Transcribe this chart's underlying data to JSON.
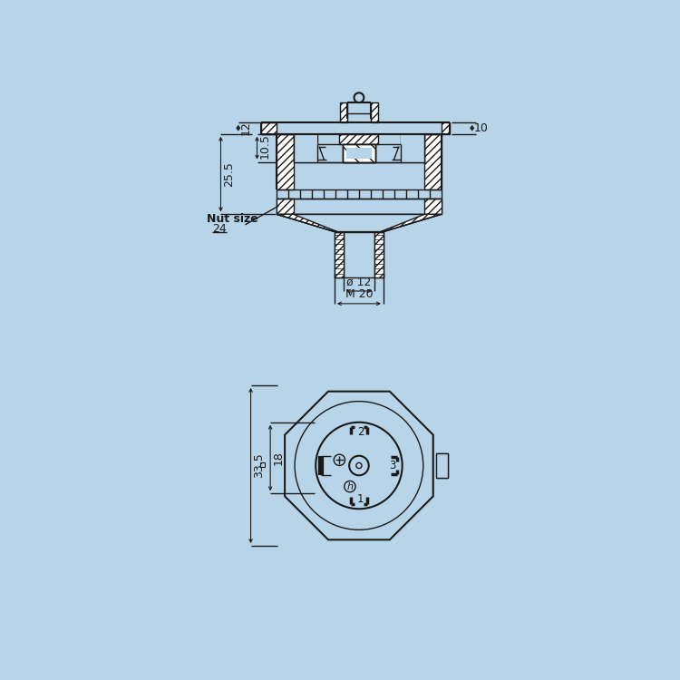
{
  "bg_color": "#b8d4e8",
  "line_color": "#1a1a1a",
  "fig_width": 7.5,
  "fig_height": 7.5,
  "dpi": 100,
  "annotations": {
    "dim_12": "12",
    "dim_10_5": "10.5",
    "dim_25_5": "25.5",
    "dim_10": "10",
    "nut_size_label": "Nut size",
    "nut_size_val": "24",
    "phi_12": "ø 12",
    "M20": "M 20",
    "dim_33_5": "33.5",
    "dim_18": "18",
    "pin1": "1",
    "pin2": "2",
    "pin3": "3"
  }
}
